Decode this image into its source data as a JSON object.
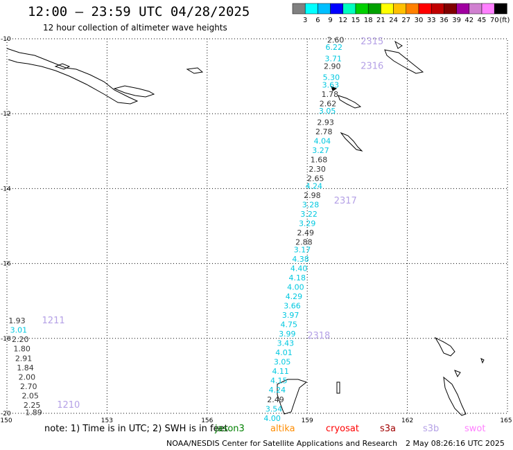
{
  "header": {
    "title": "12:00 – 23:59 UTC 04/28/2025",
    "subtitle": "12 hour collection of altimeter wave heights"
  },
  "colorbar": {
    "labels": [
      "3",
      "6",
      "9",
      "12",
      "15",
      "18",
      "21",
      "24",
      "27",
      "30",
      "33",
      "36",
      "39",
      "42",
      "45",
      "70"
    ],
    "unit": "(ft)",
    "colors": [
      "#808080",
      "#00ffff",
      "#00bfff",
      "#0000ff",
      "#00ffbf",
      "#00d000",
      "#00a000",
      "#ffff00",
      "#ffc000",
      "#ff8000",
      "#ff0000",
      "#c00000",
      "#800000",
      "#a000a0",
      "#d080d0",
      "#ff80ff",
      "#000000"
    ]
  },
  "axes": {
    "lat_labels": [
      "-10",
      "-12",
      "-14",
      "-16",
      "-18",
      "-20"
    ],
    "lon_labels": [
      "150",
      "153",
      "156",
      "159",
      "162",
      "165"
    ]
  },
  "colors": {
    "gray_value": "#333333",
    "cyan_value": "#00c8e0",
    "pass_label": "#b4a0e6",
    "coast": "#000000"
  },
  "passes": [
    {
      "label": "2315",
      "lon": 160.6,
      "lat": -10.15
    },
    {
      "label": "2316",
      "lon": 160.6,
      "lat": -10.8
    },
    {
      "label": "2317",
      "lon": 159.8,
      "lat": -14.4
    },
    {
      "label": "2318",
      "lon": 159.0,
      "lat": -18.0
    },
    {
      "label": "1211",
      "lon": 151.05,
      "lat": -17.6
    },
    {
      "label": "1210",
      "lon": 151.5,
      "lat": -19.85
    }
  ],
  "swh_track_main": [
    {
      "v": "2.60",
      "c": "gray",
      "lon": 159.85,
      "lat": -10.1
    },
    {
      "v": "6.22",
      "c": "cyan",
      "lon": 159.8,
      "lat": -10.3
    },
    {
      "v": "3.71",
      "c": "cyan",
      "lon": 159.78,
      "lat": -10.6
    },
    {
      "v": "2.90",
      "c": "gray",
      "lon": 159.75,
      "lat": -10.8
    },
    {
      "v": "5.30",
      "c": "cyan",
      "lon": 159.72,
      "lat": -11.1
    },
    {
      "v": "3.63",
      "c": "cyan",
      "lon": 159.7,
      "lat": -11.3
    },
    {
      "v": "1.78",
      "c": "gray",
      "lon": 159.68,
      "lat": -11.55
    },
    {
      "v": "2.62",
      "c": "gray",
      "lon": 159.62,
      "lat": -11.8
    },
    {
      "v": "3.05",
      "c": "cyan",
      "lon": 159.6,
      "lat": -12.0
    },
    {
      "v": "2.93",
      "c": "gray",
      "lon": 159.55,
      "lat": -12.3
    },
    {
      "v": "2.78",
      "c": "gray",
      "lon": 159.5,
      "lat": -12.55
    },
    {
      "v": "4.04",
      "c": "cyan",
      "lon": 159.45,
      "lat": -12.8
    },
    {
      "v": "3.27",
      "c": "cyan",
      "lon": 159.4,
      "lat": -13.05
    },
    {
      "v": "1.68",
      "c": "gray",
      "lon": 159.35,
      "lat": -13.3
    },
    {
      "v": "2.30",
      "c": "gray",
      "lon": 159.3,
      "lat": -13.55
    },
    {
      "v": "2.65",
      "c": "gray",
      "lon": 159.25,
      "lat": -13.8
    },
    {
      "v": "4.24",
      "c": "cyan",
      "lon": 159.2,
      "lat": -14.0
    },
    {
      "v": "2.98",
      "c": "gray",
      "lon": 159.15,
      "lat": -14.25
    },
    {
      "v": "3.28",
      "c": "cyan",
      "lon": 159.1,
      "lat": -14.5
    },
    {
      "v": "3.22",
      "c": "cyan",
      "lon": 159.05,
      "lat": -14.75
    },
    {
      "v": "3.29",
      "c": "cyan",
      "lon": 159.0,
      "lat": -15.0
    },
    {
      "v": "2.49",
      "c": "gray",
      "lon": 158.95,
      "lat": -15.25
    },
    {
      "v": "2.88",
      "c": "gray",
      "lon": 158.9,
      "lat": -15.5
    },
    {
      "v": "3.17",
      "c": "cyan",
      "lon": 158.85,
      "lat": -15.7
    },
    {
      "v": "4.38",
      "c": "cyan",
      "lon": 158.8,
      "lat": -15.95
    },
    {
      "v": "4.40",
      "c": "cyan",
      "lon": 158.75,
      "lat": -16.2
    },
    {
      "v": "4.18",
      "c": "cyan",
      "lon": 158.7,
      "lat": -16.45
    },
    {
      "v": "4.00",
      "c": "cyan",
      "lon": 158.65,
      "lat": -16.7
    },
    {
      "v": "4.29",
      "c": "cyan",
      "lon": 158.6,
      "lat": -16.95
    },
    {
      "v": "3.66",
      "c": "cyan",
      "lon": 158.55,
      "lat": -17.2
    },
    {
      "v": "3.97",
      "c": "cyan",
      "lon": 158.5,
      "lat": -17.45
    },
    {
      "v": "4.75",
      "c": "cyan",
      "lon": 158.45,
      "lat": -17.7
    },
    {
      "v": "3.99",
      "c": "cyan",
      "lon": 158.4,
      "lat": -17.95
    },
    {
      "v": "3.43",
      "c": "cyan",
      "lon": 158.35,
      "lat": -18.2
    },
    {
      "v": "4.01",
      "c": "cyan",
      "lon": 158.3,
      "lat": -18.45
    },
    {
      "v": "3.05",
      "c": "cyan",
      "lon": 158.25,
      "lat": -18.7
    },
    {
      "v": "4.11",
      "c": "cyan",
      "lon": 158.2,
      "lat": -18.95
    },
    {
      "v": "4.15",
      "c": "cyan",
      "lon": 158.15,
      "lat": -19.2
    },
    {
      "v": "4.24",
      "c": "cyan",
      "lon": 158.1,
      "lat": -19.45
    },
    {
      "v": "2.49",
      "c": "gray",
      "lon": 158.05,
      "lat": -19.7
    },
    {
      "v": "3.54",
      "c": "cyan",
      "lon": 158.0,
      "lat": -19.95
    },
    {
      "v": "4.00",
      "c": "cyan",
      "lon": 157.95,
      "lat": -20.2
    }
  ],
  "swh_track_west": [
    {
      "v": "1.93",
      "c": "gray",
      "lon": 150.3,
      "lat": -17.6
    },
    {
      "v": "3.01",
      "c": "cyan",
      "lon": 150.35,
      "lat": -17.85
    },
    {
      "v": "2.20",
      "c": "gray",
      "lon": 150.4,
      "lat": -18.1
    },
    {
      "v": "1.80",
      "c": "gray",
      "lon": 150.45,
      "lat": -18.35
    },
    {
      "v": "2.91",
      "c": "gray",
      "lon": 150.5,
      "lat": -18.6
    },
    {
      "v": "1.84",
      "c": "gray",
      "lon": 150.55,
      "lat": -18.85
    },
    {
      "v": "2.00",
      "c": "gray",
      "lon": 150.6,
      "lat": -19.1
    },
    {
      "v": "2.70",
      "c": "gray",
      "lon": 150.65,
      "lat": -19.35
    },
    {
      "v": "2.05",
      "c": "gray",
      "lon": 150.7,
      "lat": -19.6
    },
    {
      "v": "2.25",
      "c": "gray",
      "lon": 150.75,
      "lat": -19.85
    },
    {
      "v": "1.89",
      "c": "gray",
      "lon": 150.8,
      "lat": -20.05
    }
  ],
  "footer": {
    "note": "note: 1) Time is in UTC; 2) SWH is in feet",
    "satellites": [
      {
        "name": "jason3",
        "color": "#008000"
      },
      {
        "name": "altika",
        "color": "#ff8c00"
      },
      {
        "name": "cryosat",
        "color": "#ff0000"
      },
      {
        "name": "s3a",
        "color": "#a00000"
      },
      {
        "name": "s3b",
        "color": "#b4a0e6"
      },
      {
        "name": "swot",
        "color": "#ff80ff"
      }
    ],
    "credit": "NOAA/NESDIS Center for Satellite Applications and Research",
    "timestamp": "2 May 08:26:16 UTC 2025"
  }
}
